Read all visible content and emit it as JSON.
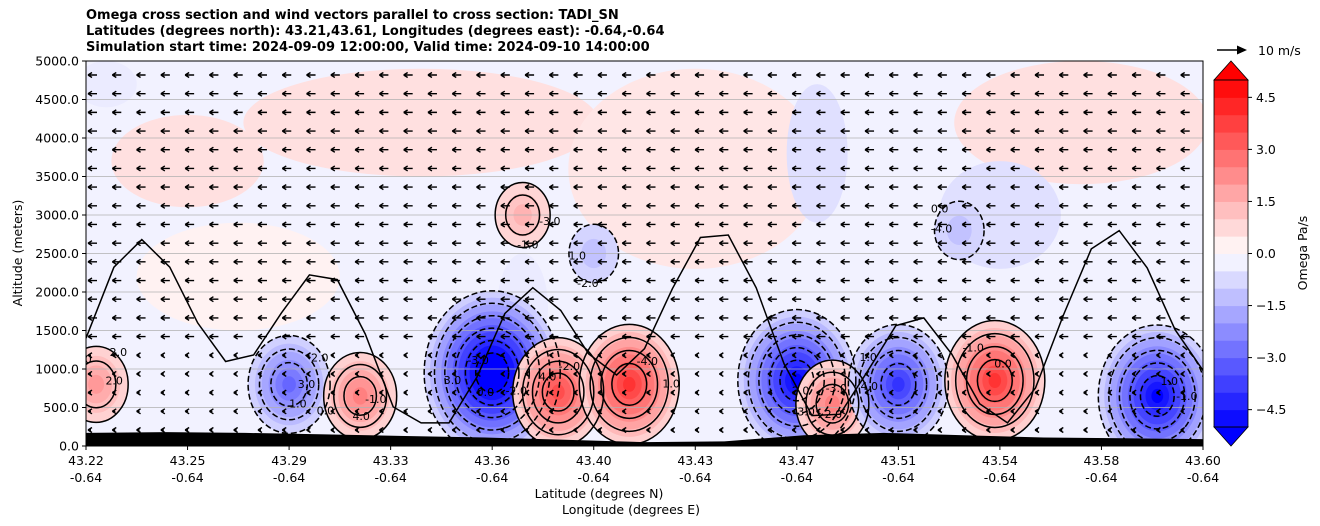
{
  "title_lines": [
    "Omega cross section and wind vectors parallel to cross section: TADI_SN",
    "Latitudes (degrees north): 43.21,43.61, Longitudes (degrees east): -0.64,-0.64",
    "Simulation start time: 2024-09-09 12:00:00, Valid time: 2024-09-10 14:00:00"
  ],
  "chart_data": {
    "type": "heatmap",
    "ylabel": "Altitude (meters)",
    "xlabel_lines": [
      "Latitude (degrees N)",
      "Longitude (degrees E)"
    ],
    "x_ticks": [
      {
        "lat": "43.22",
        "lon": "-0.64"
      },
      {
        "lat": "43.25",
        "lon": "-0.64"
      },
      {
        "lat": "43.29",
        "lon": "-0.64"
      },
      {
        "lat": "43.33",
        "lon": "-0.64"
      },
      {
        "lat": "43.36",
        "lon": "-0.64"
      },
      {
        "lat": "43.40",
        "lon": "-0.64"
      },
      {
        "lat": "43.43",
        "lon": "-0.64"
      },
      {
        "lat": "43.47",
        "lon": "-0.64"
      },
      {
        "lat": "43.51",
        "lon": "-0.64"
      },
      {
        "lat": "43.54",
        "lon": "-0.64"
      },
      {
        "lat": "43.58",
        "lon": "-0.64"
      },
      {
        "lat": "43.60",
        "lon": "-0.64"
      }
    ],
    "y_ticks": [
      "0.0",
      "500.0",
      "1000.0",
      "1500.0",
      "2000.0",
      "2500.0",
      "3000.0",
      "3500.0",
      "4000.0",
      "4500.0",
      "5000.0"
    ],
    "ylim": [
      0,
      5000
    ],
    "colorbar": {
      "label": "Omega Pa/s",
      "ticks": [
        "4.5",
        "3.0",
        "1.5",
        "0.0",
        "−1.5",
        "−3.0",
        "−4.5"
      ],
      "range": [
        -5,
        5
      ],
      "extend": "both"
    },
    "vector_key": {
      "label": "10 m/s"
    },
    "grid": "horizontal",
    "cells": [
      {
        "lat_index": 0.1,
        "alt": 800,
        "omega": 2.0
      },
      {
        "lat_index": 2.0,
        "alt": 800,
        "omega": -3.0
      },
      {
        "lat_index": 2.7,
        "alt": 650,
        "omega": 2.5
      },
      {
        "lat_index": 4.0,
        "alt": 950,
        "omega": -6.0
      },
      {
        "lat_index": 4.65,
        "alt": 700,
        "omega": 3.5
      },
      {
        "lat_index": 5.35,
        "alt": 800,
        "omega": 4.0
      },
      {
        "lat_index": 7.0,
        "alt": 850,
        "omega": -5.0
      },
      {
        "lat_index": 7.35,
        "alt": 550,
        "omega": 2.5
      },
      {
        "lat_index": 8.0,
        "alt": 800,
        "omega": -4.0
      },
      {
        "lat_index": 8.95,
        "alt": 850,
        "omega": 4.0
      },
      {
        "lat_index": 10.55,
        "alt": 650,
        "omega": -5.0
      },
      {
        "lat_index": 4.3,
        "alt": 3000,
        "omega": 1.5
      },
      {
        "lat_index": 5.0,
        "alt": 2500,
        "omega": -1.2
      },
      {
        "lat_index": 8.6,
        "alt": 2800,
        "omega": -1.2
      }
    ],
    "contour_labels": [
      "2.0",
      "1.0",
      "0.0",
      "-3.0",
      "-2.0",
      "1.0",
      "2.0",
      "3.0",
      "1.0",
      "0.0",
      "-1.0",
      "-1.0",
      "1.0",
      "0.0",
      "2.0",
      "3.0",
      "4.0",
      "3.0",
      "4.0",
      "-4.0",
      "-3.0",
      "-2.0",
      "4.0",
      "-1.0",
      "1.0",
      "-3.0",
      "-2.0",
      "-4.0",
      "1.0",
      "2.0",
      "-1.0",
      "0.0",
      "-2.0"
    ]
  }
}
